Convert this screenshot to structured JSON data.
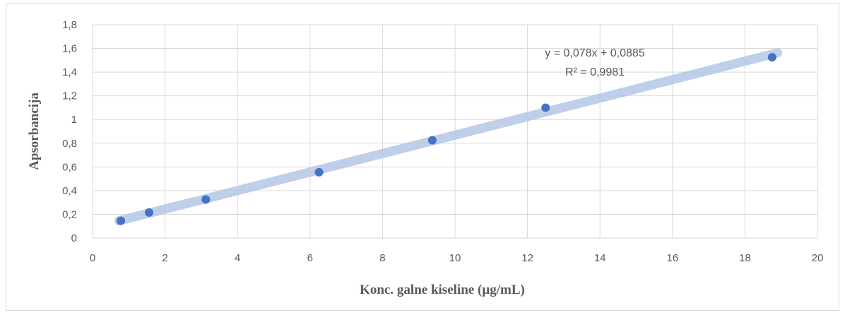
{
  "chart_data": {
    "type": "scatter",
    "title": "",
    "xlabel": "Konc. galne kiseline (µg/mL)",
    "ylabel": "Apsorbancija",
    "xlim": [
      0,
      20
    ],
    "ylim": [
      0,
      1.8
    ],
    "x_ticks": [
      "0",
      "2",
      "4",
      "6",
      "8",
      "10",
      "12",
      "14",
      "16",
      "18",
      "20"
    ],
    "y_ticks": [
      "0",
      "0,2",
      "0,4",
      "0,6",
      "0,8",
      "1",
      "1,2",
      "1,4",
      "1,6",
      "1,8"
    ],
    "grid": true,
    "series": [
      {
        "x": [
          0.78,
          1.56,
          3.125,
          6.25,
          9.375,
          12.5,
          18.75
        ],
        "y": [
          0.145,
          0.215,
          0.325,
          0.555,
          0.825,
          1.1,
          1.525
        ]
      }
    ],
    "trendline": {
      "slope": 0.078,
      "intercept": 0.0885,
      "equation": "y = 0,078x + 0,0885",
      "r_squared": "R² = 0,9981"
    },
    "colors": {
      "marker": "#4472c4",
      "trendline": "#b4c7e7",
      "grid": "#d9d9d9",
      "text": "#595959"
    }
  }
}
